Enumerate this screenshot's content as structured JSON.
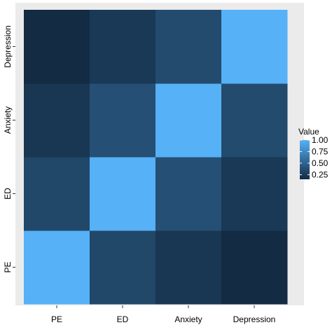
{
  "chart_data": {
    "type": "heatmap",
    "x_categories": [
      "PE",
      "ED",
      "Anxiety",
      "Depression"
    ],
    "y_categories": [
      "PE",
      "ED",
      "Anxiety",
      "Depression"
    ],
    "values": [
      [
        1.0,
        0.33,
        0.22,
        0.15
      ],
      [
        0.33,
        1.0,
        0.38,
        0.24
      ],
      [
        0.22,
        0.38,
        1.0,
        0.35
      ],
      [
        0.15,
        0.24,
        0.35,
        1.0
      ]
    ],
    "legend": {
      "title": "Value",
      "ticks": [
        "1.00",
        "0.75",
        "0.50",
        "0.25"
      ],
      "tick_values": [
        1.0,
        0.75,
        0.5,
        0.25
      ],
      "range": [
        0.15,
        1.0
      ],
      "placement": "right"
    },
    "colors": {
      "low": "#132B43",
      "high": "#56B1F7",
      "panel_background": "#EBEBEB"
    }
  }
}
